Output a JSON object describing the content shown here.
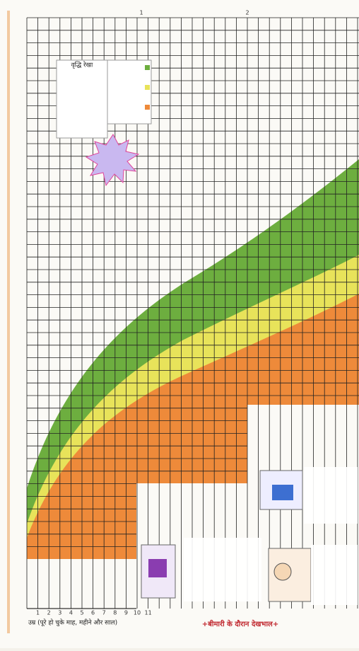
{
  "top_ticks": [
    "1",
    "2"
  ],
  "months": [
    "1",
    "2",
    "3",
    "4",
    "5",
    "6",
    "7",
    "8",
    "9",
    "10",
    "11"
  ],
  "legend_title": "वृद्धि रेखा",
  "bottom_caption": "उम्र (पूरे हो चुके माह, महीने और साल)",
  "footer_title": "बीमारी के दौरान देखभाल"
}
